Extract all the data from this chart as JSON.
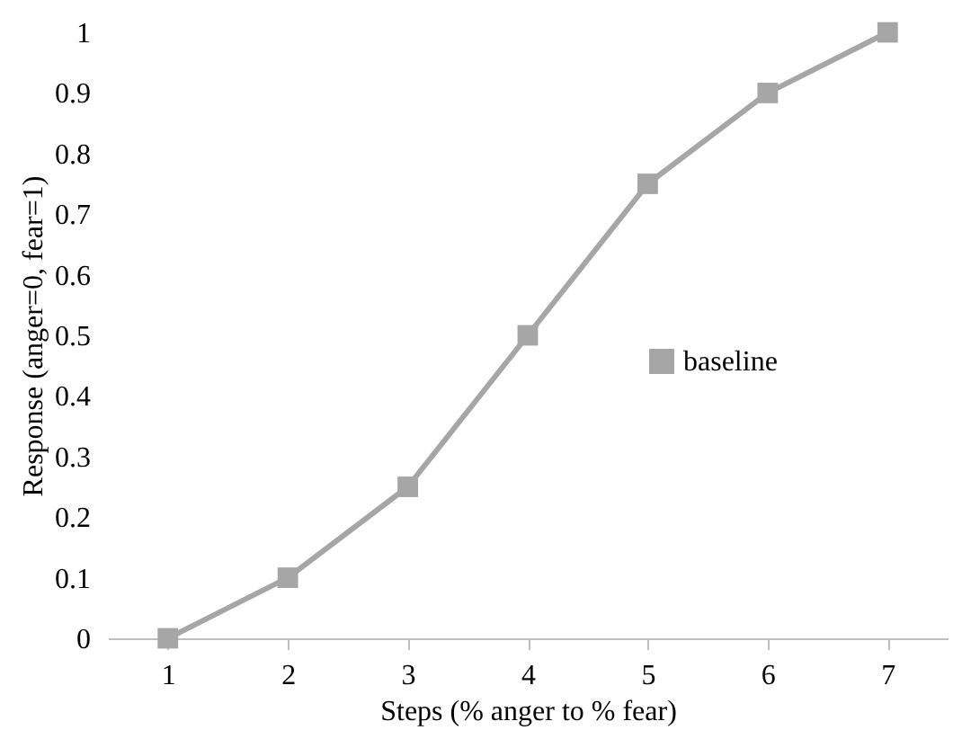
{
  "chart_data": {
    "type": "line",
    "xlabel": "Steps (% anger to % fear)",
    "ylabel": "Response (anger=0, fear=1)",
    "categories": [
      "1",
      "2",
      "3",
      "4",
      "5",
      "6",
      "7"
    ],
    "series": [
      {
        "name": "baseline",
        "color": "#a6a6a6",
        "values": [
          0,
          0.1,
          0.25,
          0.5,
          0.75,
          0.9,
          1
        ]
      }
    ],
    "ylim": [
      0,
      1
    ],
    "yticks": [
      0,
      0.1,
      0.2,
      0.3,
      0.4,
      0.5,
      0.6,
      0.7,
      0.8,
      0.9,
      1
    ],
    "marker": "square",
    "legend": "right",
    "grid": false
  }
}
